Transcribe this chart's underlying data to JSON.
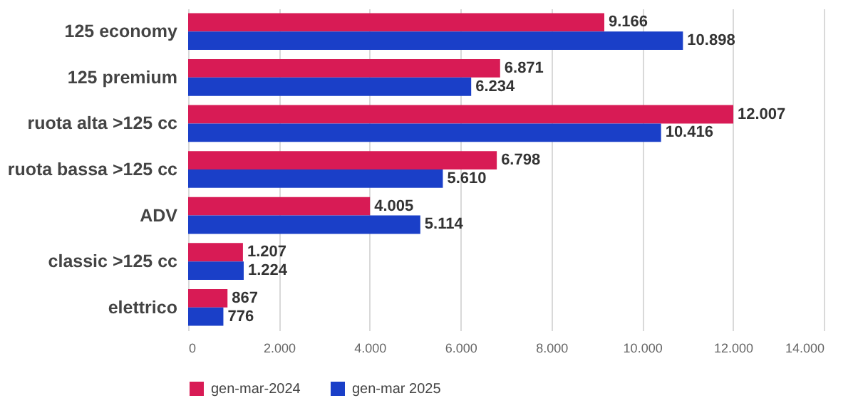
{
  "chart_data": {
    "type": "bar",
    "orientation": "horizontal",
    "categories": [
      "125 economy",
      "125 premium",
      "ruota alta >125 cc",
      "ruota bassa >125 cc",
      "ADV",
      "classic >125 cc",
      "elettrico"
    ],
    "series": [
      {
        "name": "gen-mar-2024",
        "color": "#d81b55",
        "values": [
          9166,
          6871,
          12007,
          6798,
          4005,
          1207,
          867
        ],
        "value_labels": [
          "9.166",
          "6.871",
          "12.007",
          "6.798",
          "4.005",
          "1.207",
          "867"
        ]
      },
      {
        "name": "gen-mar 2025",
        "color": "#1a3fc8",
        "values": [
          10898,
          6234,
          10416,
          5610,
          5114,
          1224,
          776
        ],
        "value_labels": [
          "10.898",
          "6.234",
          "10.416",
          "5.610",
          "5.114",
          "1.224",
          "776"
        ]
      }
    ],
    "xlim": [
      0,
      14000
    ],
    "xticks": [
      0,
      {
        "value": 2000,
        "label": "2.000"
      },
      {
        "value": 4000,
        "label": "4.000"
      },
      {
        "value": 6000,
        "label": "6.000"
      },
      {
        "value": 8000,
        "label": "8.000"
      },
      {
        "value": 10000,
        "label": "10.000"
      },
      {
        "value": 12000,
        "label": "12.000"
      },
      {
        "value": 14000,
        "label": "14.000"
      }
    ],
    "grid": "x",
    "legend": "bottom"
  }
}
